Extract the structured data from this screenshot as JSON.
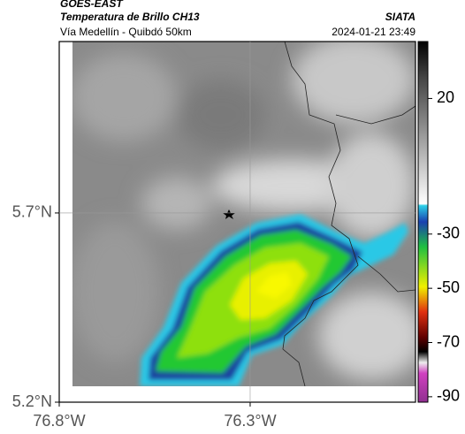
{
  "header": {
    "source": "GOES-EAST",
    "product": "Temperatura de Brillo CH13",
    "agency": "SIATA",
    "route": "Vía Medellín - Quibdó 50km",
    "timestamp": "2024-01-21 23:49"
  },
  "map": {
    "xlim": [
      -76.8,
      -75.867
    ],
    "ylim": [
      5.2,
      6.153
    ],
    "xticks": [
      {
        "value": -76.8,
        "label": "76.8°W"
      },
      {
        "value": -76.3,
        "label": "76.3°W"
      }
    ],
    "yticks": [
      {
        "value": 5.7,
        "label": "5.7°N"
      },
      {
        "value": 5.2,
        "label": "5.2°N"
      }
    ]
  },
  "colorbar": {
    "lim": [
      41,
      -92
    ],
    "ticks": [
      20,
      -30,
      -50,
      -70,
      -90
    ]
  }
}
